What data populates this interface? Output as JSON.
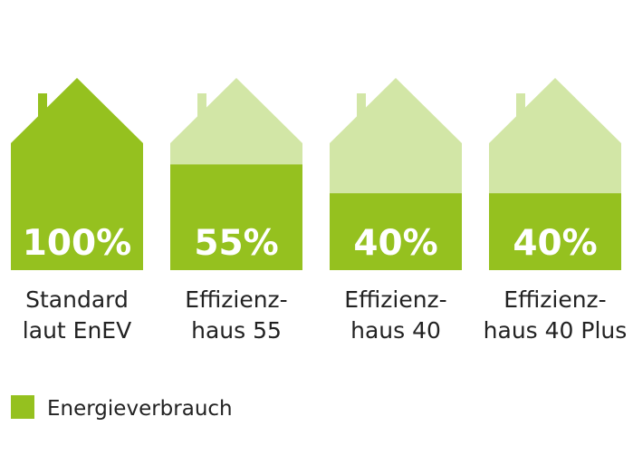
{
  "chart_data": {
    "type": "bar",
    "categories": [
      {
        "line1": "Standard",
        "line2": "laut EnEV"
      },
      {
        "line1": "Effizienz-",
        "line2": "haus 55"
      },
      {
        "line1": "Effizienz-",
        "line2": "haus 40"
      },
      {
        "line1": "Effizienz-",
        "line2": "haus 40 Plus"
      }
    ],
    "series": [
      {
        "name": "Energieverbrauch",
        "values": [
          100,
          55,
          40,
          40
        ],
        "labels": [
          "100%",
          "55%",
          "40%",
          "40%"
        ]
      }
    ],
    "ylim": [
      0,
      100
    ],
    "colors": {
      "fill": "#95c11f",
      "background_house": "#d2e6a6"
    },
    "legend": {
      "position": "bottom-left",
      "label": "Energieverbrauch"
    },
    "grid": false
  }
}
